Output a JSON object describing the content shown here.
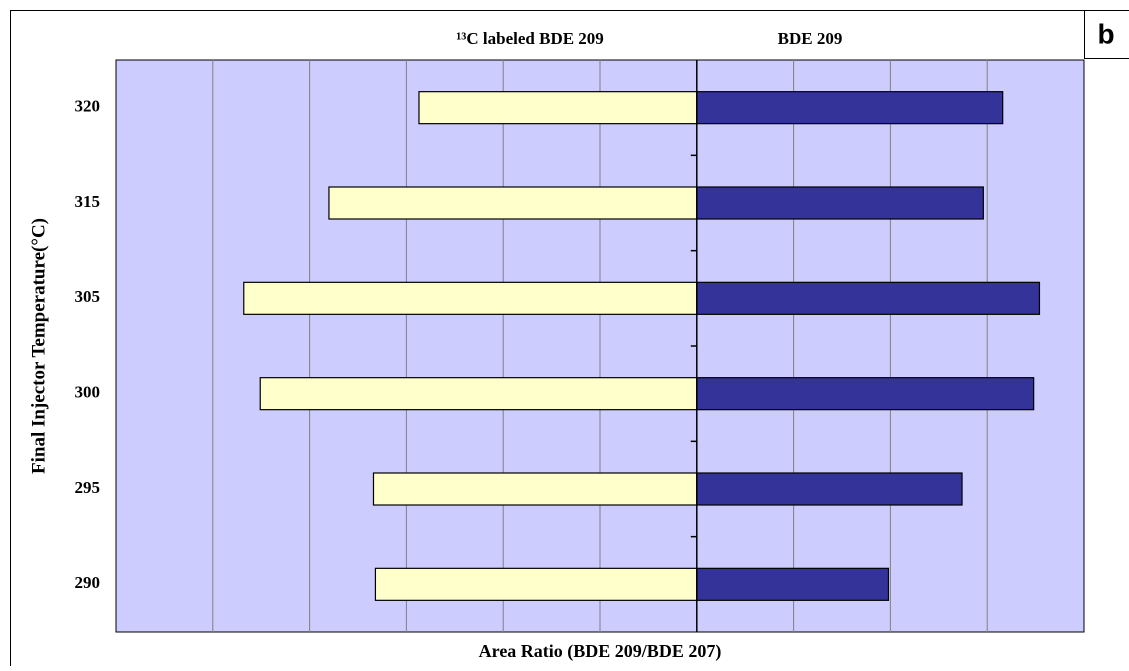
{
  "chart_data": {
    "type": "diverging-bar",
    "panel_label": "b",
    "x_label": "Area Ratio (BDE 209/BDE 207)",
    "y_label": "Final Injector Temperature(°C)",
    "categories": [
      "320",
      "315",
      "305",
      "300",
      "295",
      "290"
    ],
    "series": [
      {
        "name": "¹³C labeled BDE 209",
        "color": "#ffffcc",
        "values": [
          -2.87,
          -3.8,
          -4.68,
          -4.51,
          -3.34,
          -3.32
        ]
      },
      {
        "name": "BDE 209",
        "color": "#333399",
        "values": [
          3.16,
          2.96,
          3.54,
          3.48,
          2.74,
          1.98
        ]
      }
    ],
    "xlim": [
      -6,
      4
    ],
    "gridlines": [
      -5,
      -4,
      -3,
      -2,
      -1,
      1,
      2,
      3
    ],
    "plot_background": "#ccccff"
  }
}
